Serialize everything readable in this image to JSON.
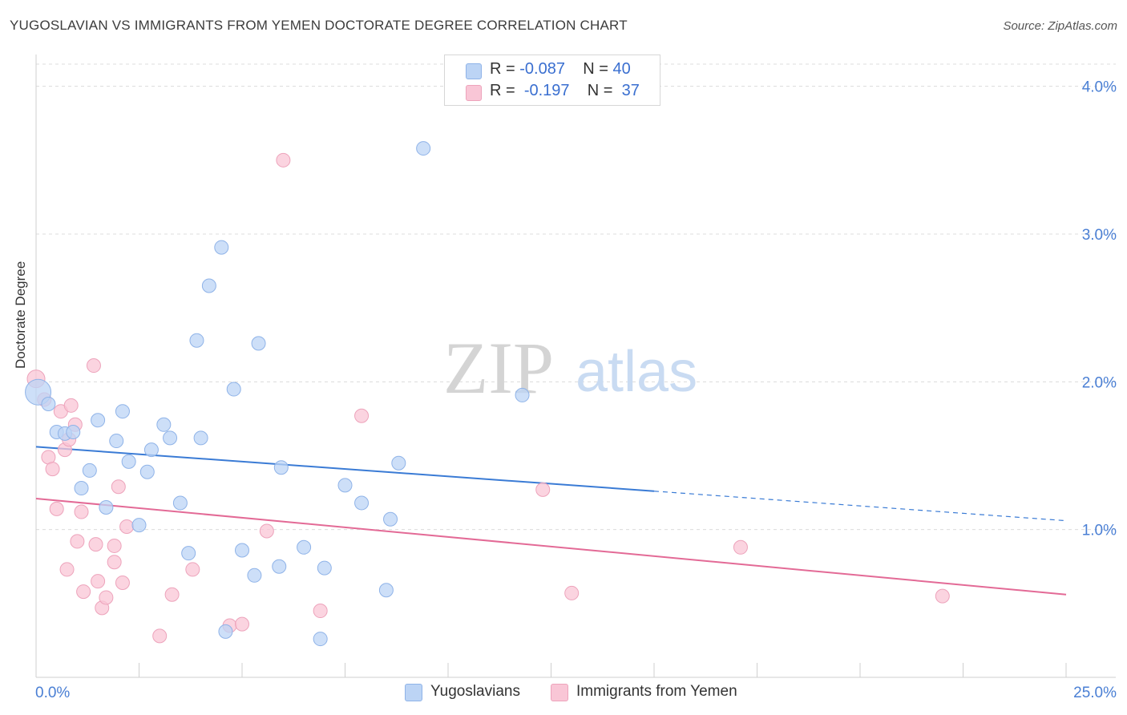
{
  "header": {
    "title": "YUGOSLAVIAN VS IMMIGRANTS FROM YEMEN DOCTORATE DEGREE CORRELATION CHART",
    "source": "Source: ZipAtlas.com"
  },
  "watermark": {
    "zip": "ZIP",
    "atlas": "atlas"
  },
  "legend": {
    "rows": [
      {
        "r_label": "R =",
        "r_value": "-0.087",
        "n_label": "N =",
        "n_value": "40"
      },
      {
        "r_label": "R =",
        "r_value": "-0.197",
        "n_label": "N =",
        "n_value": "37"
      }
    ]
  },
  "colors": {
    "series1_fill": "#bcd4f5",
    "series1_stroke": "#8fb3e8",
    "series1_line": "#3a7bd5",
    "series2_fill": "#f9c6d6",
    "series2_stroke": "#eda3bb",
    "series2_line": "#e36a96",
    "axis_label": "#4a7fd4",
    "grid": "#dcdcdc"
  },
  "chart_data": {
    "type": "scatter",
    "xlabel": "",
    "ylabel": "Doctorate Degree",
    "xlim": [
      0,
      25
    ],
    "ylim": [
      0,
      4.15
    ],
    "x_tick_labels": [
      "0.0%",
      "25.0%"
    ],
    "y_ticks": [
      1.0,
      2.0,
      3.0,
      4.0
    ],
    "y_tick_labels": [
      "1.0%",
      "2.0%",
      "3.0%",
      "4.0%"
    ],
    "grid": true,
    "legend_position": "bottom",
    "series": [
      {
        "name": "Yugoslavians",
        "trend": {
          "x0": 0,
          "y0": 1.56,
          "x1": 15,
          "y1": 1.26,
          "dash_x1": 25,
          "dash_y1": 1.06
        },
        "points": [
          [
            0.05,
            1.93
          ],
          [
            0.3,
            1.85
          ],
          [
            0.5,
            1.66
          ],
          [
            0.7,
            1.65
          ],
          [
            0.9,
            1.66
          ],
          [
            1.1,
            1.28
          ],
          [
            1.3,
            1.4
          ],
          [
            1.5,
            1.74
          ],
          [
            1.7,
            1.15
          ],
          [
            1.95,
            1.6
          ],
          [
            2.1,
            1.8
          ],
          [
            2.25,
            1.46
          ],
          [
            2.5,
            1.03
          ],
          [
            2.7,
            1.39
          ],
          [
            2.8,
            1.54
          ],
          [
            3.1,
            1.71
          ],
          [
            3.25,
            1.62
          ],
          [
            3.5,
            1.18
          ],
          [
            3.7,
            0.84
          ],
          [
            3.9,
            2.28
          ],
          [
            4.0,
            1.62
          ],
          [
            4.2,
            2.65
          ],
          [
            4.5,
            2.91
          ],
          [
            4.6,
            0.31
          ],
          [
            4.8,
            1.95
          ],
          [
            5.0,
            0.86
          ],
          [
            5.3,
            0.69
          ],
          [
            5.4,
            2.26
          ],
          [
            5.9,
            0.75
          ],
          [
            5.95,
            1.42
          ],
          [
            6.5,
            0.88
          ],
          [
            6.9,
            0.26
          ],
          [
            7.0,
            0.74
          ],
          [
            7.5,
            1.3
          ],
          [
            7.9,
            1.18
          ],
          [
            8.5,
            0.59
          ],
          [
            8.6,
            1.07
          ],
          [
            8.8,
            1.45
          ],
          [
            9.4,
            3.58
          ],
          [
            11.8,
            1.91
          ]
        ]
      },
      {
        "name": "Immigrants from Yemen",
        "trend": {
          "x0": 0,
          "y0": 1.21,
          "x1": 25,
          "y1": 0.56
        },
        "points": [
          [
            0.0,
            2.02
          ],
          [
            0.2,
            1.88
          ],
          [
            0.3,
            1.49
          ],
          [
            0.4,
            1.41
          ],
          [
            0.5,
            1.14
          ],
          [
            0.6,
            1.8
          ],
          [
            0.7,
            1.54
          ],
          [
            0.8,
            1.61
          ],
          [
            0.75,
            0.73
          ],
          [
            0.85,
            1.84
          ],
          [
            0.95,
            1.71
          ],
          [
            1.0,
            0.92
          ],
          [
            1.1,
            1.12
          ],
          [
            1.15,
            0.58
          ],
          [
            1.4,
            2.11
          ],
          [
            1.45,
            0.9
          ],
          [
            1.5,
            0.65
          ],
          [
            1.6,
            0.47
          ],
          [
            1.7,
            0.54
          ],
          [
            1.9,
            0.78
          ],
          [
            1.9,
            0.89
          ],
          [
            2.0,
            1.29
          ],
          [
            2.1,
            0.64
          ],
          [
            2.2,
            1.02
          ],
          [
            3.0,
            0.28
          ],
          [
            3.3,
            0.56
          ],
          [
            3.8,
            0.73
          ],
          [
            4.7,
            0.35
          ],
          [
            5.0,
            0.36
          ],
          [
            5.6,
            0.99
          ],
          [
            6.0,
            3.5
          ],
          [
            6.9,
            0.45
          ],
          [
            7.9,
            1.77
          ],
          [
            12.3,
            1.27
          ],
          [
            13.0,
            0.57
          ],
          [
            17.1,
            0.88
          ],
          [
            22.0,
            0.55
          ]
        ]
      }
    ]
  }
}
